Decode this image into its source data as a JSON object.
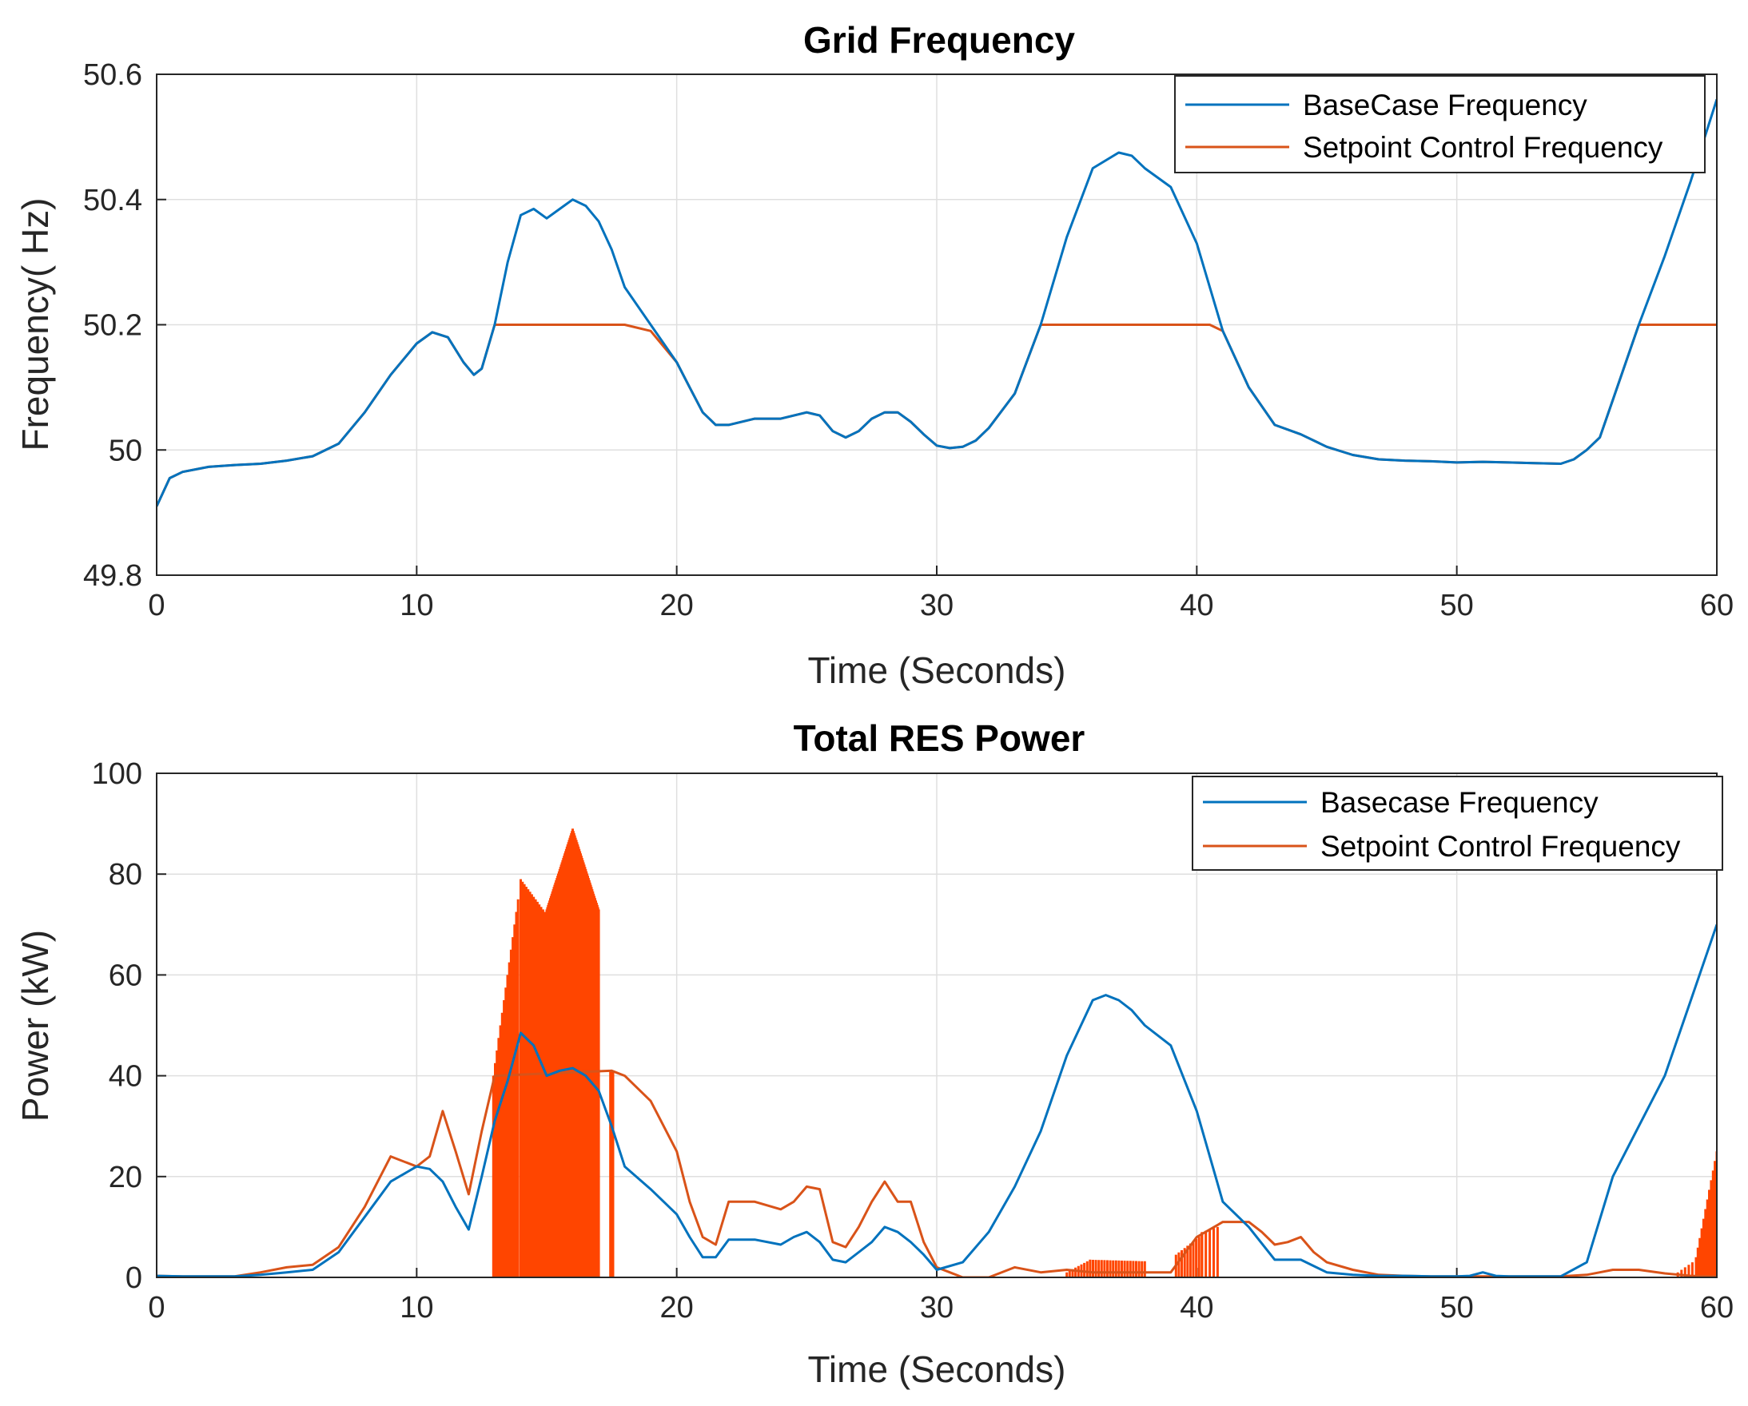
{
  "colors": {
    "blue": "#0072BD",
    "orange": "#D95319",
    "fill_orange": "#FF4500",
    "grid": "#DFDFDF",
    "axis": "#262626"
  },
  "chart_data": [
    {
      "type": "line",
      "title": "Grid Frequency",
      "xlabel": "Time (Seconds)",
      "ylabel": "Frequency( Hz)",
      "xlim": [
        0,
        60
      ],
      "ylim": [
        49.8,
        50.6
      ],
      "xticks": [
        0,
        10,
        20,
        30,
        40,
        50,
        60
      ],
      "xtick_labels": [
        "0",
        "10",
        "20",
        "30",
        "40",
        "50",
        "60"
      ],
      "yticks": [
        49.8,
        50,
        50.2,
        50.4,
        50.6
      ],
      "ytick_labels": [
        "49.8",
        "50",
        "50.2",
        "50.4",
        "50.6"
      ],
      "grid": true,
      "legend_position": "top-right",
      "series": [
        {
          "name": "BaseCase Frequency",
          "color": "#0072BD",
          "x": [
            0,
            0.5,
            1,
            2,
            3,
            4,
            5,
            6,
            7,
            8,
            9,
            10,
            10.6,
            11.2,
            11.8,
            12.2,
            12.5,
            13,
            13.5,
            14,
            14.5,
            15,
            15.5,
            16,
            16.5,
            17,
            17.5,
            18,
            19,
            20,
            20.5,
            21,
            21.5,
            22,
            23,
            24,
            25,
            25.5,
            26,
            26.5,
            27,
            27.5,
            28,
            28.5,
            29,
            29.5,
            30,
            30.5,
            31,
            31.5,
            32,
            33,
            34,
            35,
            36,
            37,
            37.5,
            38,
            39,
            40,
            41,
            42,
            43,
            44,
            45,
            46,
            47,
            48,
            49,
            50,
            51,
            52,
            53,
            54,
            54.5,
            55,
            55.5,
            56,
            57,
            58,
            59,
            60
          ],
          "y": [
            49.91,
            49.955,
            49.965,
            49.973,
            49.976,
            49.978,
            49.983,
            49.99,
            50.01,
            50.06,
            50.12,
            50.17,
            50.188,
            50.18,
            50.14,
            50.12,
            50.13,
            50.2,
            50.3,
            50.375,
            50.385,
            50.37,
            50.385,
            50.4,
            50.39,
            50.365,
            50.32,
            50.26,
            50.2,
            50.14,
            50.1,
            50.06,
            50.04,
            50.04,
            50.05,
            50.05,
            50.06,
            50.055,
            50.03,
            50.02,
            50.03,
            50.05,
            50.06,
            50.06,
            50.045,
            50.025,
            50.007,
            50.003,
            50.005,
            50.015,
            50.035,
            50.09,
            50.2,
            50.34,
            50.45,
            50.475,
            50.47,
            50.45,
            50.42,
            50.33,
            50.19,
            50.1,
            50.04,
            50.025,
            50.005,
            49.992,
            49.985,
            49.983,
            49.982,
            49.98,
            49.981,
            49.98,
            49.979,
            49.978,
            49.985,
            50,
            50.02,
            50.08,
            50.2,
            50.31,
            50.43,
            50.56
          ]
        },
        {
          "name": "Setpoint Control Frequency",
          "color": "#D95319",
          "x": [
            0,
            0.5,
            1,
            2,
            3,
            4,
            5,
            6,
            7,
            8,
            9,
            10,
            10.6,
            11.2,
            11.8,
            12.2,
            12.5,
            13,
            14,
            15,
            16,
            17,
            18,
            19,
            20,
            20.5,
            21,
            21.5,
            22,
            23,
            24,
            25,
            25.5,
            26,
            26.5,
            27,
            27.5,
            28,
            28.5,
            29,
            29.5,
            30,
            30.5,
            31,
            31.5,
            32,
            33,
            34,
            35,
            36,
            37,
            38,
            39,
            40,
            40.5,
            41,
            42,
            43,
            44,
            45,
            46,
            47,
            48,
            49,
            50,
            51,
            52,
            53,
            54,
            54.5,
            55,
            55.5,
            56,
            57,
            58,
            59,
            60
          ],
          "y": [
            49.91,
            49.955,
            49.965,
            49.973,
            49.976,
            49.978,
            49.983,
            49.99,
            50.01,
            50.06,
            50.12,
            50.17,
            50.188,
            50.18,
            50.14,
            50.12,
            50.13,
            50.2,
            50.2,
            50.2,
            50.2,
            50.2,
            50.2,
            50.19,
            50.14,
            50.1,
            50.06,
            50.04,
            50.04,
            50.05,
            50.05,
            50.06,
            50.055,
            50.03,
            50.02,
            50.03,
            50.05,
            50.06,
            50.06,
            50.045,
            50.025,
            50.007,
            50.003,
            50.005,
            50.015,
            50.035,
            50.09,
            50.2,
            50.2,
            50.2,
            50.2,
            50.2,
            50.2,
            50.2,
            50.2,
            50.19,
            50.1,
            50.04,
            50.025,
            50.005,
            49.992,
            49.985,
            49.983,
            49.982,
            49.98,
            49.981,
            49.98,
            49.979,
            49.978,
            49.985,
            50,
            50.02,
            50.08,
            50.2,
            50.2,
            50.2,
            50.2
          ]
        }
      ]
    },
    {
      "type": "line",
      "title": "Total RES Power",
      "xlabel": "Time (Seconds)",
      "ylabel": "Power (kW)",
      "xlim": [
        0,
        60
      ],
      "ylim": [
        0,
        100
      ],
      "xticks": [
        0,
        10,
        20,
        30,
        40,
        50,
        60
      ],
      "xtick_labels": [
        "0",
        "10",
        "20",
        "30",
        "40",
        "50",
        "60"
      ],
      "yticks": [
        0,
        20,
        40,
        60,
        80,
        100
      ],
      "ytick_labels": [
        "0",
        "20",
        "40",
        "60",
        "80",
        "100"
      ],
      "grid": true,
      "legend_position": "top-right",
      "series": [
        {
          "name": "Basecase Frequency",
          "color": "#0072BD",
          "x": [
            0,
            1,
            2,
            3,
            4,
            5,
            6,
            7,
            8,
            9,
            10,
            10.5,
            11,
            11.5,
            12,
            12.5,
            13,
            13.5,
            14,
            14.5,
            15,
            15.5,
            16,
            16.5,
            17,
            17.5,
            18,
            19,
            20,
            20.5,
            21,
            21.5,
            22,
            23,
            24,
            24.5,
            25,
            25.5,
            26,
            26.5,
            27,
            27.5,
            28,
            28.5,
            29,
            29.5,
            30,
            31,
            32,
            33,
            34,
            35,
            36,
            36.5,
            37,
            37.5,
            38,
            38.5,
            39,
            40,
            41,
            42,
            43,
            44,
            45,
            46,
            47,
            48,
            49,
            50,
            50.5,
            51,
            51.5,
            52,
            53,
            54,
            55,
            56,
            57,
            58,
            59,
            60
          ],
          "y": [
            0.3,
            0.2,
            0.2,
            0.2,
            0.5,
            1,
            1.5,
            5,
            12,
            19,
            22,
            21.5,
            19,
            14,
            9.5,
            20,
            31,
            39,
            48.5,
            46,
            40,
            41,
            41.5,
            40,
            37,
            30,
            22,
            17.5,
            12.5,
            8,
            4,
            4,
            7.5,
            7.5,
            6.5,
            8,
            9,
            7,
            3.5,
            3,
            5,
            7,
            10,
            9,
            7,
            4.5,
            1.5,
            3,
            9,
            18,
            29,
            44,
            55,
            56,
            55,
            53,
            50,
            48,
            46,
            33,
            15,
            10,
            3.5,
            3.5,
            1,
            0.5,
            0.3,
            0.3,
            0.2,
            0.2,
            0.3,
            1,
            0.3,
            0.2,
            0.2,
            0.2,
            3,
            20,
            30,
            40,
            55,
            70
          ]
        },
        {
          "name": "Setpoint Control Frequency",
          "color": "#D95319",
          "x": [
            0,
            1,
            2,
            3,
            4,
            5,
            6,
            7,
            8,
            9,
            10,
            10.5,
            11,
            11.5,
            12,
            12.5,
            13,
            17.5,
            18,
            19,
            20,
            20.5,
            21,
            21.5,
            22,
            23,
            24,
            24.5,
            25,
            25.5,
            26,
            26.5,
            27,
            27.5,
            28,
            28.5,
            29,
            29.5,
            30,
            30.5,
            31,
            32,
            33,
            34,
            35,
            36,
            37,
            38,
            39,
            40,
            40.5,
            41,
            42,
            42.5,
            43,
            43.5,
            44,
            44.5,
            45,
            46,
            47,
            48,
            49,
            50,
            51,
            52,
            53,
            54,
            55,
            55.5,
            56,
            57,
            58,
            59,
            60
          ],
          "y": [
            0.3,
            0.2,
            0.2,
            0.2,
            1,
            2,
            2.5,
            6,
            14,
            24,
            22,
            24,
            33,
            25,
            16.5,
            29,
            40,
            41,
            40,
            35,
            25,
            15,
            8,
            6.5,
            15,
            15,
            13.5,
            15,
            18,
            17.5,
            7,
            6,
            10,
            15,
            19,
            15,
            15,
            7,
            2,
            1,
            0,
            0,
            2,
            1,
            1.5,
            1,
            1,
            1,
            1,
            8,
            9.5,
            11,
            11,
            9,
            6.5,
            7,
            8,
            5,
            3,
            1.5,
            0.5,
            0.3,
            0.2,
            0.2,
            0.2,
            0.2,
            0.2,
            0.2,
            0.5,
            1,
            1.5,
            1.5,
            0.8,
            0.3,
            0.2
          ]
        }
      ],
      "oscillation_bands": [
        {
          "x_start": 12.95,
          "x_end": 13.9,
          "y_start": 40,
          "y_end": 75,
          "step": 0.07
        },
        {
          "x_start": 14.0,
          "x_end": 15.0,
          "y_start": 79,
          "y_end": 72,
          "step": 0.07
        },
        {
          "x_start": 15.0,
          "x_end": 16.0,
          "y_start": 73,
          "y_end": 89,
          "step": 0.028
        },
        {
          "x_start": 16.0,
          "x_end": 17.0,
          "y_start": 89,
          "y_end": 73,
          "step": 0.028
        },
        {
          "x_start": 17.45,
          "x_end": 17.55,
          "y_start": 41,
          "y_end": 41,
          "step": 0.05
        },
        {
          "x_start": 35.0,
          "x_end": 35.9,
          "y_start": 1,
          "y_end": 3.5,
          "step": 0.11
        },
        {
          "x_start": 35.9,
          "x_end": 38.0,
          "y_start": 3.5,
          "y_end": 3.2,
          "step": 0.11
        },
        {
          "x_start": 39.2,
          "x_end": 40.2,
          "y_start": 4.5,
          "y_end": 8.5,
          "step": 0.11
        },
        {
          "x_start": 40.2,
          "x_end": 40.8,
          "y_start": 9,
          "y_end": 10,
          "step": 0.15
        },
        {
          "x_start": 58.5,
          "x_end": 59.2,
          "y_start": 1,
          "y_end": 3.5,
          "step": 0.14
        },
        {
          "x_start": 59.2,
          "x_end": 60.0,
          "y_start": 4,
          "y_end": 25,
          "step": 0.07
        }
      ]
    }
  ]
}
